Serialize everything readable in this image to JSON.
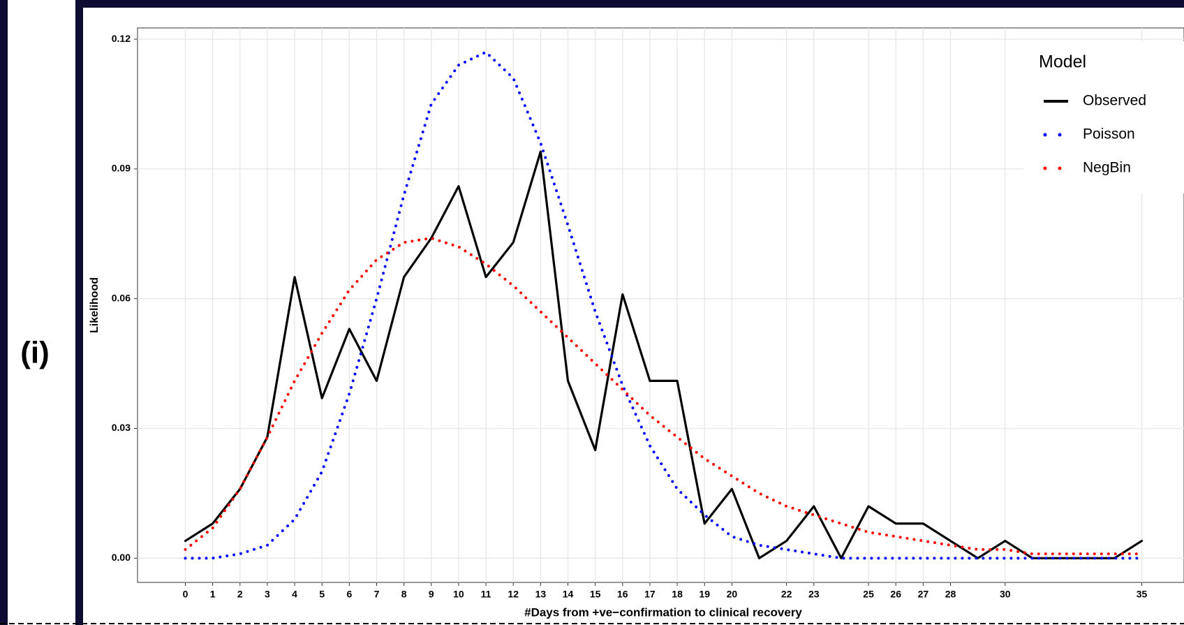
{
  "chart_data": {
    "type": "line",
    "panel_label": "(i)",
    "x_label": "#Days from +ve−confirmation to clinical recovery",
    "y_label": "Likelihood",
    "legend_title": "Model",
    "legend_position": "top-right",
    "grid": true,
    "x": [
      0,
      1,
      2,
      3,
      4,
      5,
      6,
      7,
      8,
      9,
      10,
      11,
      12,
      13,
      14,
      15,
      16,
      17,
      18,
      19,
      20,
      21,
      22,
      23,
      24,
      25,
      26,
      27,
      28,
      29,
      30,
      31,
      32,
      33,
      34,
      35
    ],
    "series": [
      {
        "name": "Observed",
        "color": "#000000",
        "style": "solid",
        "values": [
          0.004,
          0.008,
          0.016,
          0.028,
          0.065,
          0.037,
          0.053,
          0.041,
          0.065,
          0.074,
          0.086,
          0.065,
          0.073,
          0.094,
          0.041,
          0.025,
          0.061,
          0.041,
          0.041,
          0.008,
          0.016,
          0,
          0.004,
          0.012,
          0,
          0.012,
          0.008,
          0.008,
          0.004,
          0,
          0.004,
          0,
          0,
          0,
          0,
          0.004
        ]
      },
      {
        "name": "Poisson",
        "color": "#0000ff",
        "style": "dotted",
        "values": [
          0,
          0,
          0.001,
          0.003,
          0.009,
          0.02,
          0.038,
          0.06,
          0.084,
          0.105,
          0.114,
          0.117,
          0.111,
          0.096,
          0.077,
          0.057,
          0.04,
          0.026,
          0.016,
          0.01,
          0.005,
          0.003,
          0.002,
          0.001,
          0,
          0,
          0,
          0,
          0,
          0,
          0,
          0,
          0,
          0,
          0,
          0
        ]
      },
      {
        "name": "NegBin",
        "color": "#ff0000",
        "style": "dotted",
        "values": [
          0.002,
          0.007,
          0.016,
          0.028,
          0.041,
          0.052,
          0.062,
          0.069,
          0.073,
          0.074,
          0.072,
          0.068,
          0.063,
          0.057,
          0.051,
          0.045,
          0.039,
          0.033,
          0.028,
          0.023,
          0.019,
          0.015,
          0.012,
          0.01,
          0.008,
          0.006,
          0.005,
          0.004,
          0.003,
          0.002,
          0.002,
          0.001,
          0.001,
          0.001,
          0.001,
          0.001
        ]
      }
    ],
    "xlim": [
      -1.75,
      36.5
    ],
    "xticks": [
      0,
      1,
      2,
      3,
      4,
      5,
      6,
      7,
      8,
      9,
      10,
      11,
      12,
      13,
      14,
      15,
      16,
      17,
      18,
      19,
      20,
      22,
      23,
      25,
      26,
      27,
      28,
      30,
      35
    ],
    "ylim": [
      -0.0056,
      0.1226
    ],
    "yticks": [
      {
        "value": 0,
        "label": "0.00"
      },
      0.03,
      0.06,
      0.09,
      0.12
    ]
  }
}
